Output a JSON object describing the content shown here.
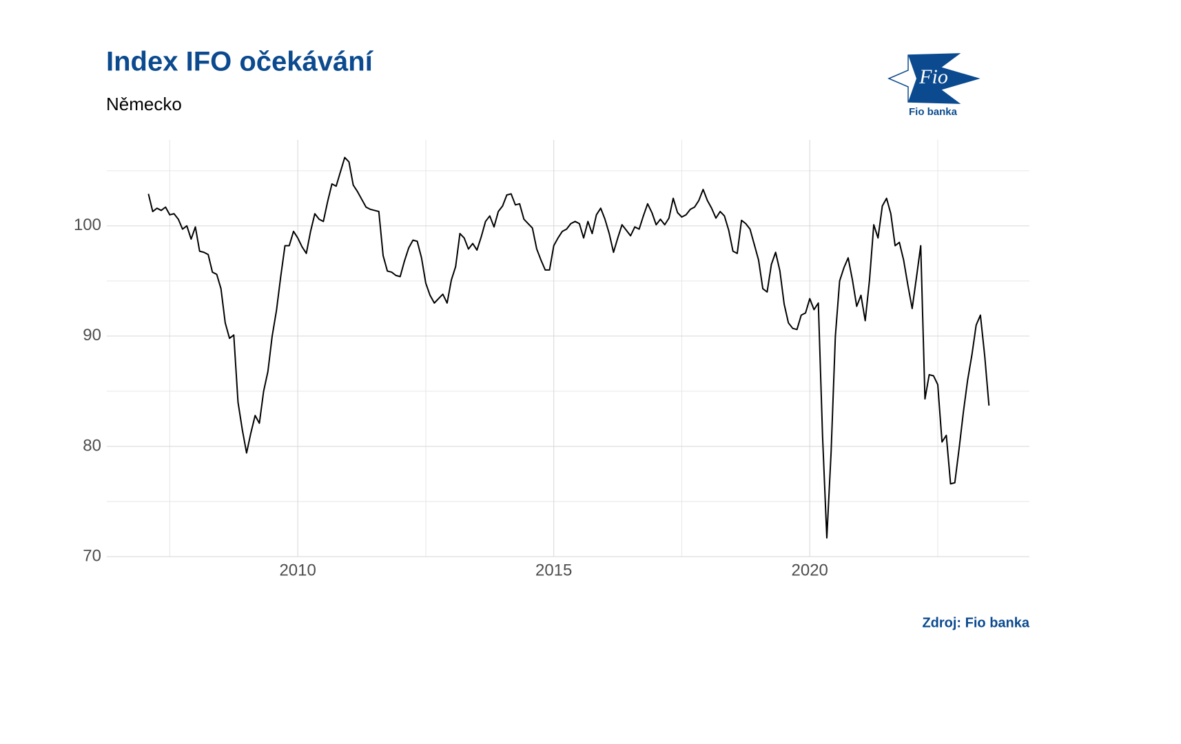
{
  "chart_data": {
    "type": "line",
    "title": "Index IFO očekávání",
    "subtitle": "Německo",
    "source": "Zdroj: Fio banka",
    "brand": "Fio",
    "brand_caption": "Fio banka",
    "color": "#000000",
    "grid": true,
    "xlim": [
      2006.27,
      2024.29
    ],
    "ylim": [
      70,
      107.8
    ],
    "xticks": [
      2010,
      2015,
      2020
    ],
    "x_minor_ticks": [
      2007.5,
      2012.5,
      2017.5,
      2022.5
    ],
    "yticks": [
      70,
      80,
      90,
      100
    ],
    "y_minor_ticks": [
      75,
      85,
      95,
      105
    ],
    "x": [
      2007.083,
      2007.167,
      2007.25,
      2007.333,
      2007.417,
      2007.5,
      2007.583,
      2007.667,
      2007.75,
      2007.833,
      2007.917,
      2008.0,
      2008.083,
      2008.167,
      2008.25,
      2008.333,
      2008.417,
      2008.5,
      2008.583,
      2008.667,
      2008.75,
      2008.833,
      2008.917,
      2009.0,
      2009.083,
      2009.167,
      2009.25,
      2009.333,
      2009.417,
      2009.5,
      2009.583,
      2009.667,
      2009.75,
      2009.833,
      2009.917,
      2010.0,
      2010.083,
      2010.167,
      2010.25,
      2010.333,
      2010.417,
      2010.5,
      2010.583,
      2010.667,
      2010.75,
      2010.833,
      2010.917,
      2011.0,
      2011.083,
      2011.167,
      2011.25,
      2011.333,
      2011.417,
      2011.5,
      2011.583,
      2011.667,
      2011.75,
      2011.833,
      2011.917,
      2012.0,
      2012.083,
      2012.167,
      2012.25,
      2012.333,
      2012.417,
      2012.5,
      2012.583,
      2012.667,
      2012.75,
      2012.833,
      2012.917,
      2013.0,
      2013.083,
      2013.167,
      2013.25,
      2013.333,
      2013.417,
      2013.5,
      2013.583,
      2013.667,
      2013.75,
      2013.833,
      2013.917,
      2014.0,
      2014.083,
      2014.167,
      2014.25,
      2014.333,
      2014.417,
      2014.5,
      2014.583,
      2014.667,
      2014.75,
      2014.833,
      2014.917,
      2015.0,
      2015.083,
      2015.167,
      2015.25,
      2015.333,
      2015.417,
      2015.5,
      2015.583,
      2015.667,
      2015.75,
      2015.833,
      2015.917,
      2016.0,
      2016.083,
      2016.167,
      2016.25,
      2016.333,
      2016.417,
      2016.5,
      2016.583,
      2016.667,
      2016.75,
      2016.833,
      2016.917,
      2017.0,
      2017.083,
      2017.167,
      2017.25,
      2017.333,
      2017.417,
      2017.5,
      2017.583,
      2017.667,
      2017.75,
      2017.833,
      2017.917,
      2018.0,
      2018.083,
      2018.167,
      2018.25,
      2018.333,
      2018.417,
      2018.5,
      2018.583,
      2018.667,
      2018.75,
      2018.833,
      2018.917,
      2019.0,
      2019.083,
      2019.167,
      2019.25,
      2019.333,
      2019.417,
      2019.5,
      2019.583,
      2019.667,
      2019.75,
      2019.833,
      2019.917,
      2020.0,
      2020.083,
      2020.167,
      2020.25,
      2020.333,
      2020.417,
      2020.5,
      2020.583,
      2020.667,
      2020.75,
      2020.833,
      2020.917,
      2021.0,
      2021.083,
      2021.167,
      2021.25,
      2021.333,
      2021.417,
      2021.5,
      2021.583,
      2021.667,
      2021.75,
      2021.833,
      2021.917,
      2022.0,
      2022.083,
      2022.167,
      2022.25,
      2022.333,
      2022.417,
      2022.5,
      2022.583,
      2022.667,
      2022.75,
      2022.833,
      2022.917,
      2023.0,
      2023.083,
      2023.167,
      2023.25,
      2023.333,
      2023.417,
      2023.5
    ],
    "values": [
      102.9,
      101.3,
      101.6,
      101.4,
      101.7,
      101.0,
      101.1,
      100.6,
      99.7,
      100.0,
      98.8,
      99.9,
      97.7,
      97.6,
      97.4,
      95.8,
      95.6,
      94.3,
      91.2,
      89.8,
      90.1,
      84.0,
      81.5,
      79.4,
      81.2,
      82.8,
      82.1,
      85.0,
      86.8,
      90.0,
      92.3,
      95.4,
      98.2,
      98.2,
      99.5,
      98.9,
      98.1,
      97.5,
      99.5,
      101.1,
      100.6,
      100.4,
      102.2,
      103.8,
      103.6,
      104.9,
      106.2,
      105.8,
      103.7,
      103.1,
      102.4,
      101.7,
      101.5,
      101.4,
      101.3,
      97.3,
      95.9,
      95.8,
      95.5,
      95.4,
      96.8,
      98.0,
      98.7,
      98.6,
      97.1,
      94.8,
      93.7,
      93.0,
      93.4,
      93.8,
      93.0,
      95.1,
      96.3,
      99.3,
      98.9,
      97.9,
      98.4,
      97.8,
      99.0,
      100.4,
      100.9,
      99.9,
      101.3,
      101.8,
      102.8,
      102.9,
      101.9,
      102.0,
      100.6,
      100.2,
      99.8,
      97.9,
      96.9,
      96.0,
      96.0,
      98.2,
      98.9,
      99.5,
      99.7,
      100.2,
      100.4,
      100.2,
      98.9,
      100.4,
      99.3,
      101.0,
      101.6,
      100.6,
      99.3,
      97.6,
      98.9,
      100.1,
      99.6,
      99.1,
      99.9,
      99.7,
      100.9,
      102.0,
      101.2,
      100.1,
      100.6,
      100.1,
      100.7,
      102.5,
      101.2,
      100.8,
      101.0,
      101.5,
      101.7,
      102.3,
      103.3,
      102.3,
      101.6,
      100.7,
      101.3,
      100.9,
      99.6,
      97.7,
      97.5,
      100.5,
      100.2,
      99.7,
      98.3,
      96.9,
      94.3,
      94.0,
      96.5,
      97.6,
      95.9,
      92.9,
      91.2,
      90.7,
      90.6,
      91.9,
      92.1,
      93.4,
      92.4,
      93.0,
      80.9,
      71.7,
      79.5,
      90.0,
      95.0,
      96.2,
      97.1,
      95.1,
      92.7,
      93.7,
      91.4,
      95.1,
      100.1,
      98.9,
      101.8,
      102.5,
      101.1,
      98.2,
      98.5,
      96.9,
      94.6,
      92.5,
      95.3,
      98.2,
      84.3,
      86.5,
      86.4,
      85.6,
      80.4,
      81.0,
      76.6,
      76.7,
      79.8,
      83.1,
      86.0,
      88.3,
      91.0,
      91.9,
      88.2,
      83.7
    ]
  }
}
